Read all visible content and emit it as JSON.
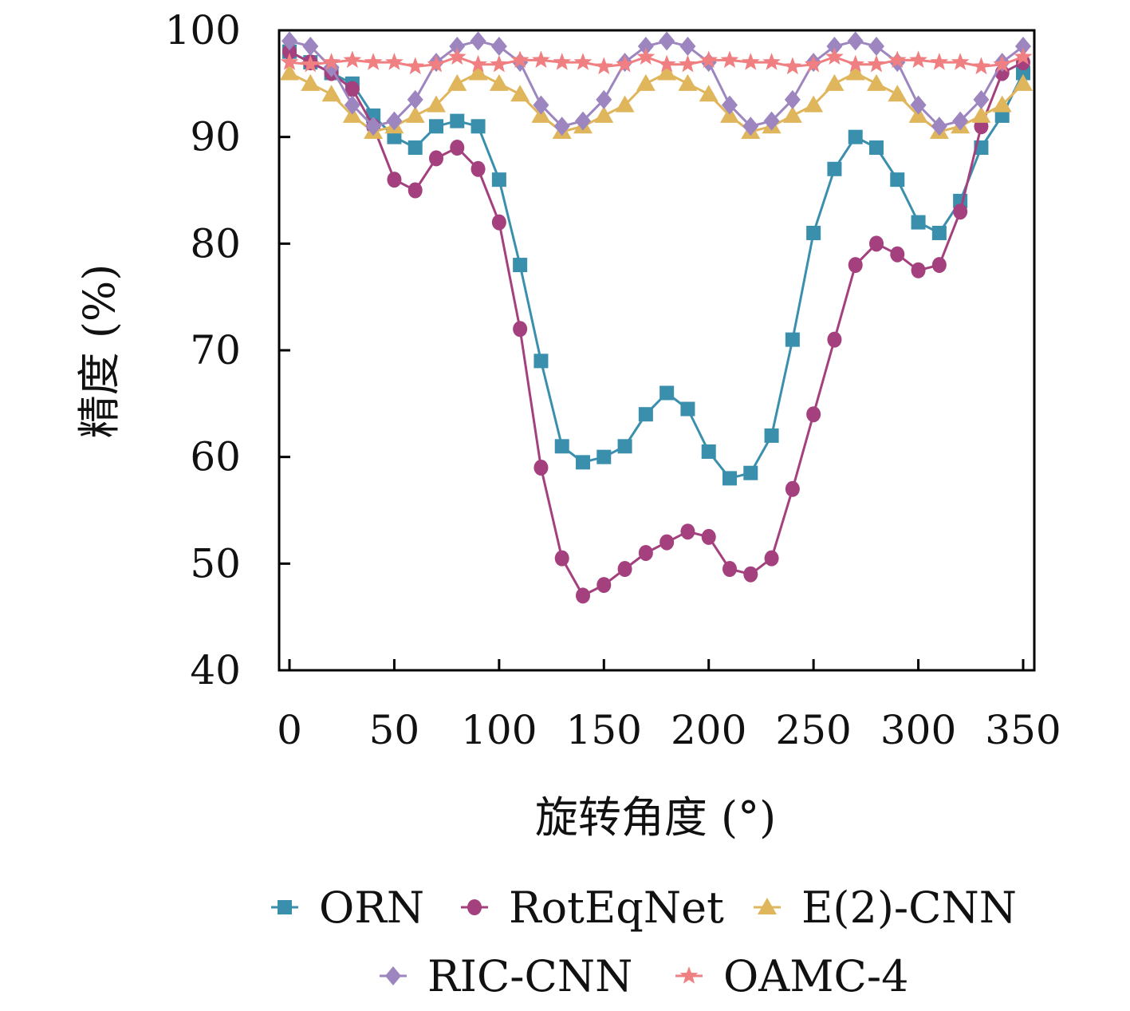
{
  "chart_data": {
    "type": "line",
    "title": "",
    "xlabel": "旋转角度 (°)",
    "ylabel": "精度 (%)",
    "xlim": [
      -5,
      355
    ],
    "ylim": [
      40,
      100
    ],
    "xticks": [
      "0",
      "50",
      "100",
      "150",
      "200",
      "250",
      "300",
      "350"
    ],
    "yticks": [
      "40",
      "50",
      "60",
      "70",
      "80",
      "90",
      "100"
    ],
    "legend_position": "bottom",
    "x": [
      0,
      10,
      20,
      30,
      40,
      50,
      60,
      70,
      80,
      90,
      100,
      110,
      120,
      130,
      140,
      150,
      160,
      170,
      180,
      190,
      200,
      210,
      220,
      230,
      240,
      250,
      260,
      270,
      280,
      290,
      300,
      310,
      320,
      330,
      340,
      350
    ],
    "series": [
      {
        "name": "ORN",
        "color": "#3a8fad",
        "marker": "square",
        "values": [
          98,
          97,
          96,
          95,
          92,
          90,
          89,
          91,
          91.5,
          91,
          86,
          78,
          69,
          61,
          59.5,
          60,
          61,
          64,
          66,
          64.5,
          60.5,
          58,
          58.5,
          62,
          71,
          81,
          87,
          90,
          89,
          86,
          82,
          81,
          84,
          89,
          92,
          96
        ]
      },
      {
        "name": "RotEqNet",
        "color": "#a3407d",
        "marker": "circle",
        "values": [
          98,
          97,
          96,
          94.5,
          91,
          86,
          85,
          88,
          89,
          87,
          82,
          72,
          59,
          50.5,
          47,
          48,
          49.5,
          51,
          52,
          53,
          52.5,
          49.5,
          49,
          50.5,
          57,
          64,
          71,
          78,
          80,
          79,
          77.5,
          78,
          83,
          91,
          96,
          97
        ]
      },
      {
        "name": "E(2)-CNN",
        "color": "#e0b65c",
        "marker": "triangle",
        "values": [
          96,
          95,
          94,
          92,
          90.5,
          91,
          92,
          93,
          95,
          96,
          95,
          94,
          92,
          90.5,
          91,
          92,
          93,
          95,
          96,
          95,
          94,
          92,
          90.5,
          91,
          92,
          93,
          95,
          96,
          95,
          94,
          92,
          90.5,
          91,
          92,
          93,
          95
        ]
      },
      {
        "name": "RIC-CNN",
        "color": "#9d86c0",
        "marker": "diamond",
        "values": [
          99,
          98.5,
          96.5,
          93,
          91,
          91.5,
          93.5,
          97,
          98.5,
          99,
          98.5,
          97,
          93,
          91,
          91.5,
          93.5,
          97,
          98.5,
          99,
          98.5,
          97,
          93,
          91,
          91.5,
          93.5,
          97,
          98.5,
          99,
          98.5,
          97,
          93,
          91,
          91.5,
          93.5,
          97,
          98.5
        ]
      },
      {
        "name": "OAMC-4",
        "color": "#f07f82",
        "marker": "star",
        "values": [
          97,
          96.8,
          97,
          97.2,
          97,
          97,
          96.6,
          96.8,
          97.5,
          96.8,
          96.8,
          97.2,
          97.2,
          97,
          97,
          96.6,
          96.8,
          97.5,
          96.8,
          96.8,
          97.2,
          97.2,
          97,
          97,
          96.6,
          96.8,
          97.5,
          96.8,
          96.8,
          97.2,
          97.2,
          97,
          97,
          96.6,
          96.8,
          97.5
        ]
      }
    ]
  }
}
